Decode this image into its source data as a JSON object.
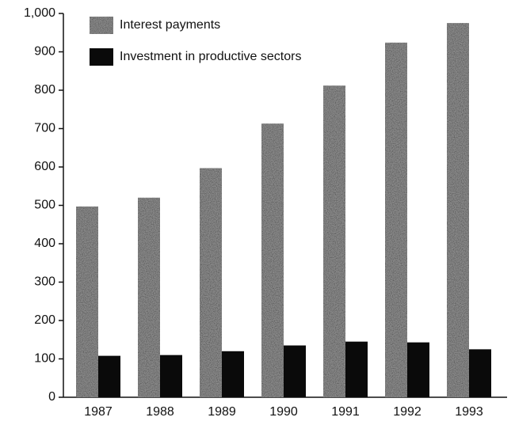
{
  "chart_data": {
    "type": "bar",
    "categories": [
      "1987",
      "1988",
      "1989",
      "1990",
      "1991",
      "1992",
      "1993"
    ],
    "series": [
      {
        "name": "Interest payments",
        "color": "#8a8a8a",
        "values": [
          497,
          520,
          597,
          713,
          812,
          924,
          975
        ]
      },
      {
        "name": "Investment in productive sectors",
        "color": "#0a0a0a",
        "values": [
          108,
          110,
          120,
          135,
          145,
          143,
          125
        ]
      }
    ],
    "ylim": [
      0,
      1000
    ],
    "yticks": [
      0,
      100,
      200,
      300,
      400,
      500,
      600,
      700,
      800,
      900,
      {
        "value": 1000,
        "label": "1,000"
      }
    ],
    "grid": false,
    "legend": "upper left"
  }
}
